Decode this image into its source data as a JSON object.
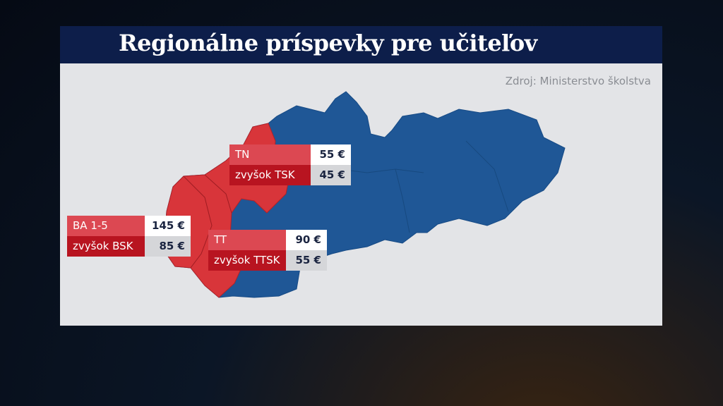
{
  "title": "Regionálne príspevky pre učiteľov",
  "source": "Zdroj: Ministerstvo školstva",
  "labels": [
    {
      "rows": [
        [
          "TN",
          "55 €"
        ],
        [
          "zvyšok TSK",
          "45 €"
        ]
      ]
    },
    {
      "rows": [
        [
          "BA 1-5",
          "145 €"
        ],
        [
          "zvyšok BSK",
          "85 €"
        ]
      ]
    },
    {
      "rows": [
        [
          "TT",
          "90 €"
        ],
        [
          "zvyšok TTSK",
          "55 €"
        ]
      ]
    }
  ]
}
